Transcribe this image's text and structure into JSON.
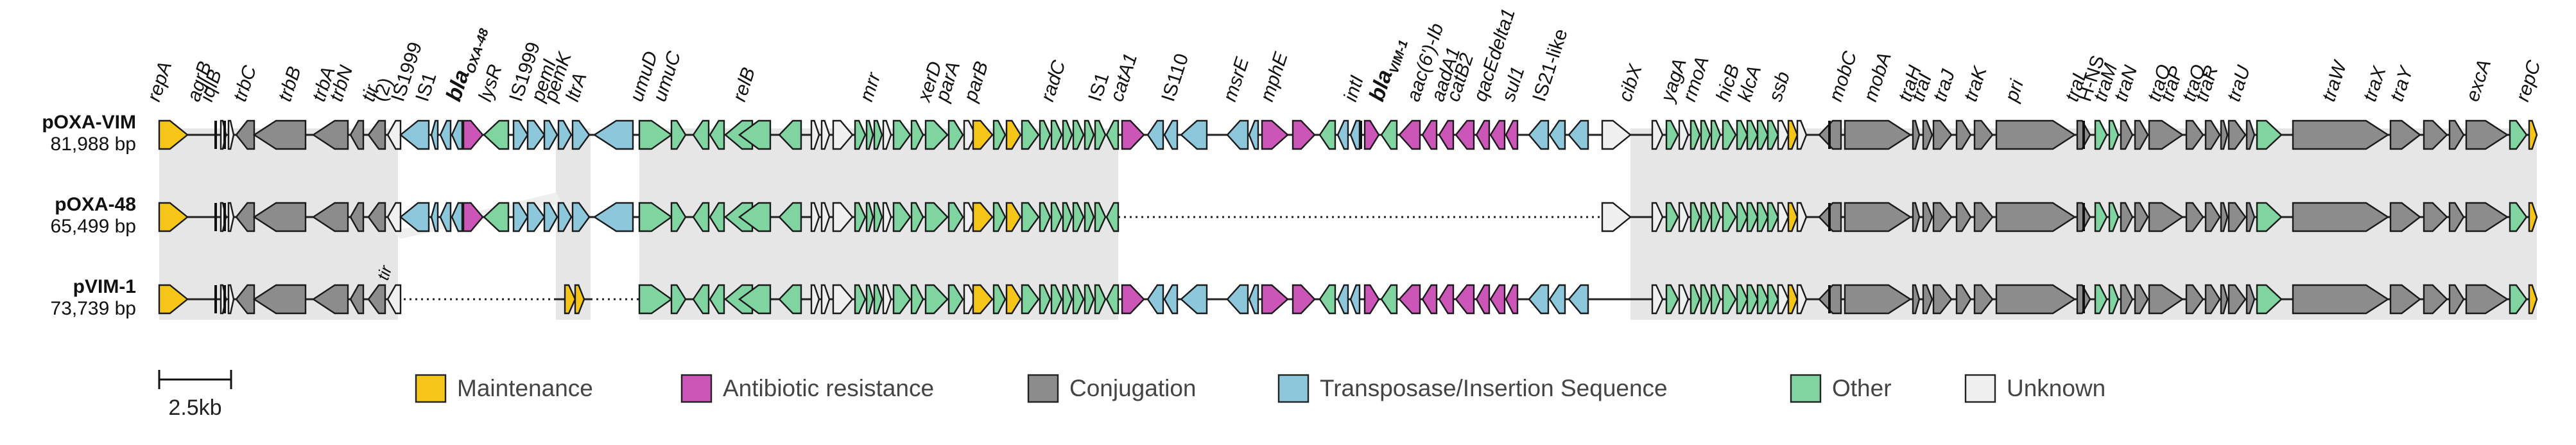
{
  "tracks": [
    {
      "name": "pOXA-VIM",
      "size": "81,988 bp"
    },
    {
      "name": "pOXA-48",
      "size": "65,499 bp"
    },
    {
      "name": "pVIM-1",
      "size": "73,739 bp"
    }
  ],
  "colors": {
    "Maintenance": "#F5C518",
    "Antibiotic resistance": "#CC55B8",
    "Conjugation": "#8C8C8C",
    "Transposase/Insertion Sequence": "#8DC7DB",
    "Other": "#7FD4A0",
    "Unknown": "#F0F0F0",
    "shade": "#E6E6E6"
  },
  "legend": [
    {
      "label": "Maintenance",
      "category": "Maintenance"
    },
    {
      "label": "Antibiotic resistance",
      "category": "Antibiotic resistance"
    },
    {
      "label": "Conjugation",
      "category": "Conjugation"
    },
    {
      "label": "Transposase/Insertion Sequence",
      "category": "Transposase/Insertion Sequence"
    },
    {
      "label": "Other",
      "category": "Other"
    },
    {
      "label": "Unknown",
      "category": "Unknown"
    }
  ],
  "scale_bar": {
    "label": "2.5kb"
  },
  "gene_labels": [
    {
      "text": "repA",
      "italic": true
    },
    {
      "text": "agrB",
      "italic": true
    },
    {
      "text": "iqlB",
      "italic": true
    },
    {
      "text": "trbC",
      "italic": true
    },
    {
      "text": "trbB",
      "italic": true
    },
    {
      "text": "trbA",
      "italic": true
    },
    {
      "text": "trbN",
      "italic": true
    },
    {
      "text": "tir",
      "italic": true
    },
    {
      "text": "(2)",
      "italic": false
    },
    {
      "text": "IS1999",
      "italic": false
    },
    {
      "text": "IS1",
      "italic": false
    },
    {
      "text": "bla",
      "sub": "OXA-48",
      "italic": true,
      "bold": true
    },
    {
      "text": "lysR",
      "italic": true
    },
    {
      "text": "IS1999",
      "italic": false
    },
    {
      "text": "pemI",
      "italic": true
    },
    {
      "text": "pemK",
      "italic": true
    },
    {
      "text": "ltrA",
      "italic": true
    },
    {
      "text": "umuD",
      "italic": true
    },
    {
      "text": "umuC",
      "italic": true
    },
    {
      "text": "relB",
      "italic": true
    },
    {
      "text": "mrr",
      "italic": true
    },
    {
      "text": "xerD",
      "italic": true
    },
    {
      "text": "parA",
      "italic": true
    },
    {
      "text": "parB",
      "italic": true
    },
    {
      "text": "radC",
      "italic": true
    },
    {
      "text": "IS1",
      "italic": false
    },
    {
      "text": "catA1",
      "italic": true
    },
    {
      "text": "IS110",
      "italic": false
    },
    {
      "text": "msrE",
      "italic": true
    },
    {
      "text": "mphE",
      "italic": true
    },
    {
      "text": "intI",
      "italic": true
    },
    {
      "text": "bla",
      "sub": "VIM-1",
      "italic": true,
      "bold": true
    },
    {
      "text": "aac(6')-Ib",
      "italic": true
    },
    {
      "text": "aadA1",
      "italic": true
    },
    {
      "text": "catB2",
      "italic": true
    },
    {
      "text": "qacEdelta1",
      "italic": true
    },
    {
      "text": "sul1",
      "italic": true
    },
    {
      "text": "IS21-like",
      "italic": false
    },
    {
      "text": "cibX",
      "italic": true
    },
    {
      "text": "yagA",
      "italic": true
    },
    {
      "text": "rmoA",
      "italic": true
    },
    {
      "text": "hicB",
      "italic": true
    },
    {
      "text": "klcA",
      "italic": true
    },
    {
      "text": "ssb",
      "italic": true
    },
    {
      "text": "mobC",
      "italic": true
    },
    {
      "text": "mobA",
      "italic": true
    },
    {
      "text": "traH",
      "italic": true
    },
    {
      "text": "traI",
      "italic": true
    },
    {
      "text": "traJ",
      "italic": true
    },
    {
      "text": "traK",
      "italic": true
    },
    {
      "text": "pri",
      "italic": true
    },
    {
      "text": "traL",
      "italic": true
    },
    {
      "text": "H-NS",
      "italic": false
    },
    {
      "text": "traM",
      "italic": true
    },
    {
      "text": "traN",
      "italic": true
    },
    {
      "text": "traO",
      "italic": true
    },
    {
      "text": "traP",
      "italic": true
    },
    {
      "text": "traQ",
      "italic": true
    },
    {
      "text": "traR",
      "italic": true
    },
    {
      "text": "traU",
      "italic": true
    },
    {
      "text": "traW",
      "italic": true
    },
    {
      "text": "traX",
      "italic": true
    },
    {
      "text": "traY",
      "italic": true
    },
    {
      "text": "excA",
      "italic": true
    },
    {
      "text": "repC",
      "italic": true
    }
  ],
  "tir_label": {
    "text": "tir",
    "italic": true
  }
}
